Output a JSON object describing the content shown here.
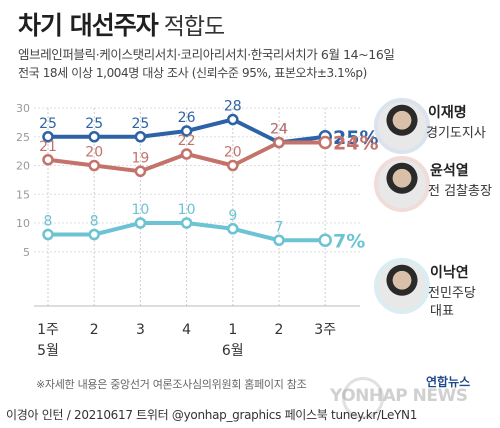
{
  "header": {
    "title": "차기 대선주자",
    "title_suffix": "적합도",
    "subtitle1": "엠브레인퍼블릭·케이스탯리서치·코리아리서치·한국리서치가 6월 14~16일",
    "subtitle2": "전국 18세 이상 1,004명 대상 조사 (신뢰수준 95%, 표본오차±3.1%p)"
  },
  "chart_data": {
    "type": "line",
    "categories": [
      "1주",
      "2",
      "3",
      "4",
      "1",
      "2",
      "3주"
    ],
    "month_labels": [
      {
        "index": 0,
        "label": "5월"
      },
      {
        "index": 4,
        "label": "6월"
      }
    ],
    "ylim": [
      0,
      30
    ],
    "yticks": [
      5,
      10,
      15,
      20,
      25,
      30
    ],
    "grid": true,
    "series": [
      {
        "name": "이재명",
        "values": [
          25,
          25,
          25,
          26,
          28,
          24,
          25
        ],
        "color": "#2d63a6",
        "end_label": "25%",
        "point_labels": [
          "25",
          "25",
          "25",
          "26",
          "28",
          "24",
          ""
        ]
      },
      {
        "name": "윤석열",
        "values": [
          21,
          20,
          19,
          22,
          20,
          24,
          24
        ],
        "color": "#c4736b",
        "end_label": "24%",
        "point_labels": [
          "21",
          "20",
          "19",
          "22",
          "20",
          "24",
          ""
        ]
      },
      {
        "name": "이낙연",
        "values": [
          8,
          8,
          10,
          10,
          9,
          7,
          7
        ],
        "color": "#6cc3d3",
        "end_label": "7%",
        "point_labels": [
          "8",
          "8",
          "10",
          "10",
          "9",
          "7",
          ""
        ]
      }
    ]
  },
  "people": [
    {
      "name": "이재명",
      "role": "경기도지사",
      "icon": "portrait-icon"
    },
    {
      "name": "윤석열",
      "role": "전 검찰총장",
      "icon": "portrait-icon"
    },
    {
      "name": "이낙연",
      "role": "전민주당",
      "role2": "대표",
      "icon": "portrait-icon"
    }
  ],
  "note": "※자세한 내용은 중앙선거 여론조사심의위원회 홈페이지 참조",
  "footer": "이경아 인턴 / 20210617 트위터 @yonhap_graphics  페이스북 tuney.kr/LeYN1",
  "logo": "연합뉴스",
  "watermark": "YONHAP NEWS"
}
